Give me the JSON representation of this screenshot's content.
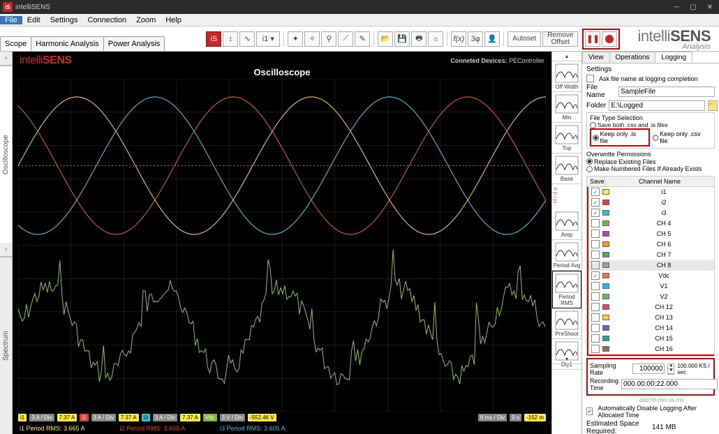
{
  "title": "intelliSENS",
  "menus": [
    "File",
    "Edit",
    "Settings",
    "Connection",
    "Zoom",
    "Help"
  ],
  "leftTabs": [
    "Scope",
    "Harmonic Analysis",
    "Power Analysis"
  ],
  "toolbar": {
    "autoset": "Autoset",
    "removeOffset": "Remove\nOffset"
  },
  "brand": {
    "a": "intelli",
    "b": "SENS",
    "sub": "Analysis"
  },
  "vtabs": [
    "Oscilloscope",
    "Spectrum"
  ],
  "scope": {
    "logo_a": "intelli",
    "logo_b": "SENS",
    "connLabel": "Conneted Devices:",
    "connVal": "PEController",
    "title": "Oscilloscope",
    "chips": [
      {
        "cls": "y",
        "t": "i1"
      },
      {
        "cls": "gr",
        "t": "3 A / Div"
      },
      {
        "cls": "yl",
        "t": "7.37 A"
      },
      {
        "cls": "r",
        "t": "i2"
      },
      {
        "cls": "gr",
        "t": "3 A / Div"
      },
      {
        "cls": "yl",
        "t": "7.37 A"
      },
      {
        "cls": "c",
        "t": "i3"
      },
      {
        "cls": "gr",
        "t": "3 A / Div"
      },
      {
        "cls": "yl",
        "t": "7.37 A"
      },
      {
        "cls": "g",
        "t": "Vdc"
      },
      {
        "cls": "gr",
        "t": "3 V / Div"
      },
      {
        "cls": "yl",
        "t": "-552.46 V"
      }
    ],
    "rchips": [
      {
        "cls": "gr",
        "t": "8 ms / Div"
      },
      {
        "cls": "gr",
        "t": "0 s"
      },
      {
        "cls": "yl",
        "t": "-152 m"
      }
    ],
    "rms": [
      {
        "cls": "y",
        "t": "i1 Period RMS: 3.665 A"
      },
      {
        "cls": "r",
        "t": "i2 Period RMS: 3.658 A"
      },
      {
        "cls": "c",
        "t": "i3 Period RMS: 3.605 A"
      }
    ],
    "grid": {
      "cols": 10,
      "rows": 10,
      "color": "#333"
    },
    "sines": [
      {
        "color": "#ffd54f",
        "phase": 0
      },
      {
        "color": "#ef5350",
        "phase": 2.094
      },
      {
        "color": "#4dd0e1",
        "phase": 4.189
      }
    ],
    "noisy": {
      "color": "#8bc34a"
    }
  },
  "measure": [
    "Off Width",
    "Min",
    "Top",
    "Base",
    "Amp",
    "Period Avg",
    "Period RMS",
    "PreShoot",
    "Dly1"
  ],
  "rpanel": {
    "tabs": [
      "View",
      "Operations",
      "Logging"
    ],
    "settings": "Settings",
    "askName": "Ask file name at logging completion",
    "fileNameL": "File Name",
    "fileNameV": "SampleFile",
    "folderL": "Folder",
    "folderV": "E:\\Logged",
    "ftTitle": "File Type Selection",
    "ft1": "Save both .csv and .is files",
    "ft2": "Keep only .is file",
    "ft3": "Keep only .csv file",
    "owTitle": "Overwritte Permissions",
    "ow1": "Replace Existing Files",
    "ow2": "Make Numbered Files If Already Exists",
    "chHead1": "Save",
    "chHead2": "Channel Name",
    "channels": [
      {
        "on": true,
        "sw": "#ffeb3b",
        "nm": "i1"
      },
      {
        "on": true,
        "sw": "#e53935",
        "nm": "i2"
      },
      {
        "on": true,
        "sw": "#26c6da",
        "nm": "i3"
      },
      {
        "on": false,
        "sw": "#7cb342",
        "nm": "CH 4"
      },
      {
        "on": false,
        "sw": "#ab47bc",
        "nm": "CH 5"
      },
      {
        "on": false,
        "sw": "#ff9800",
        "nm": "CH 6"
      },
      {
        "on": false,
        "sw": "#4caf50",
        "nm": "CH 7"
      },
      {
        "on": false,
        "sw": "#9e9e9e",
        "nm": "CH 8",
        "sel": true
      },
      {
        "on": true,
        "sw": "#ff7043",
        "nm": "Vdc"
      },
      {
        "on": false,
        "sw": "#29b6f6",
        "nm": "V1"
      },
      {
        "on": false,
        "sw": "#66bb6a",
        "nm": "V2"
      },
      {
        "on": false,
        "sw": "#ec407a",
        "nm": "CH 12"
      },
      {
        "on": false,
        "sw": "#ffca28",
        "nm": "CH 13"
      },
      {
        "on": false,
        "sw": "#5c6bc0",
        "nm": "CH 14"
      },
      {
        "on": false,
        "sw": "#26a69a",
        "nm": "CH 15"
      },
      {
        "on": false,
        "sw": "#8d6e63",
        "nm": "CH 16"
      }
    ],
    "srL": "Sampling Rate",
    "srV": "100000",
    "srU": "100.000 KS / sec",
    "rtL": "Recording Time",
    "rtV": "000.00:00:22.000",
    "rtH": "ddd.hh:mm:ss.ms",
    "adL": "Automatically Disable Logging After Allocated Time",
    "estL": "Estimated Space Required:",
    "estV": "141 MB"
  }
}
